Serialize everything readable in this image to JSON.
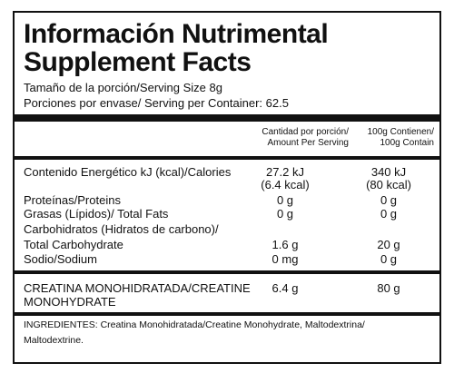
{
  "title_es": "Información Nutrimental",
  "title_en": "Supplement Facts",
  "serving_size": "Tamaño de la porción/Serving Size 8g",
  "servings_per_container": "Porciones por envase/ Serving per Container: 62.5",
  "columns": {
    "per_serving_line1": "Cantidad por porción/",
    "per_serving_line2": "Amount Per Serving",
    "per_100g_line1": "100g Contienen/",
    "per_100g_line2": "100g Contain"
  },
  "rows": {
    "energy": {
      "label": "Contenido Energético kJ (kcal)/Calories",
      "serving_kj": "27.2 kJ",
      "serving_kcal": "(6.4 kcal)",
      "per100_kj": "340 kJ",
      "per100_kcal": "(80 kcal)"
    },
    "protein": {
      "label": "Proteínas/Proteins",
      "serving": "0 g",
      "per100": "0 g"
    },
    "fat": {
      "label": "Grasas (Lípidos)/ Total Fats",
      "serving": "0 g",
      "per100": "0 g"
    },
    "carbs": {
      "label_line1": "Carbohidratos (Hidratos de carbono)/",
      "label_line2": "Total Carbohydrate",
      "serving": "1.6 g",
      "per100": "20 g"
    },
    "sodium": {
      "label": "Sodio/Sodium",
      "serving": "0 mg",
      "per100": "0 g"
    },
    "creatine": {
      "label_line1": "CREATINA MONOHIDRATADA/CREATINE",
      "label_line2": "MONOHYDRATE",
      "serving": "6.4 g",
      "per100": "80 g"
    }
  },
  "ingredients_line1": "INGREDIENTES: Creatina Monohidratada/Creatine Monohydrate, Maltodextrina/",
  "ingredients_line2": "Maltodextrine."
}
